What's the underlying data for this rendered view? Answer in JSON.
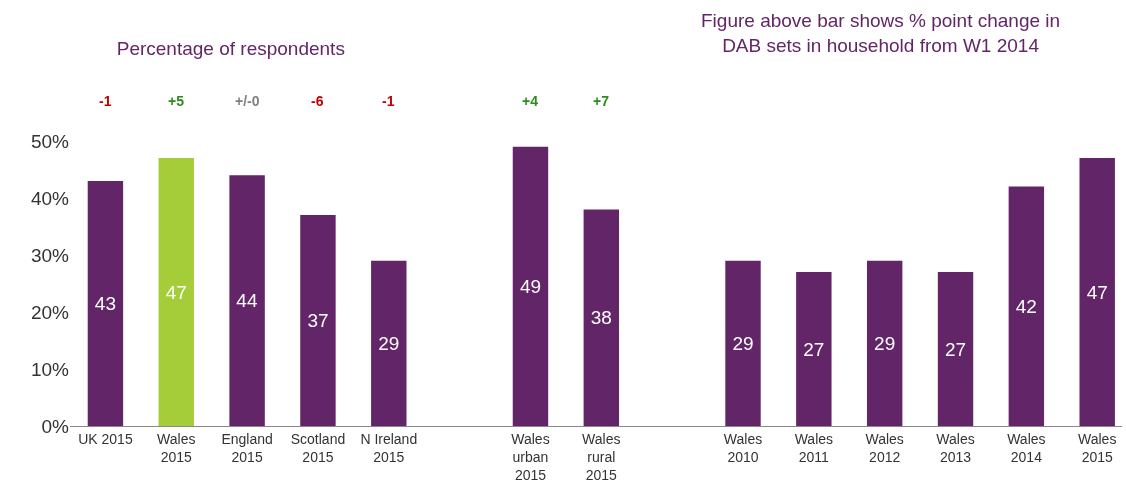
{
  "chart_data": {
    "type": "bar",
    "title": "Percentage of respondents",
    "categories": [
      "UK 2015",
      "Wales 2015",
      "England 2015",
      "Scotland 2015",
      "N Ireland 2015",
      null,
      "Wales urban 2015",
      "Wales rural 2015",
      null,
      "Wales 2010",
      "Wales 2011",
      "Wales 2012",
      "Wales 2013",
      "Wales 2014",
      "Wales 2015"
    ],
    "values": [
      43,
      47,
      44,
      37,
      29,
      null,
      49,
      38,
      null,
      29,
      27,
      29,
      27,
      42,
      47
    ],
    "colors": [
      "#622567",
      "#a5cd39",
      "#622567",
      "#622567",
      "#622567",
      null,
      "#622567",
      "#622567",
      null,
      "#622567",
      "#622567",
      "#622567",
      "#622567",
      "#622567",
      "#622567"
    ],
    "data_labels": true,
    "ylim": [
      0,
      50
    ],
    "yticks": [
      {
        "value": 0,
        "label": "0%"
      },
      {
        "value": 10,
        "label": "10%"
      },
      {
        "value": 20,
        "label": "20%"
      },
      {
        "value": 30,
        "label": "30%"
      },
      {
        "value": 40,
        "label": "40%"
      },
      {
        "value": 50,
        "label": "50%"
      }
    ],
    "grid": false,
    "legend": false,
    "annotations": [
      "Figure above bar shows % point change in DAB sets in household from W1 2014",
      "-1",
      "+5",
      "+/-0",
      "-6",
      "-1",
      "+4",
      "+7"
    ]
  }
}
